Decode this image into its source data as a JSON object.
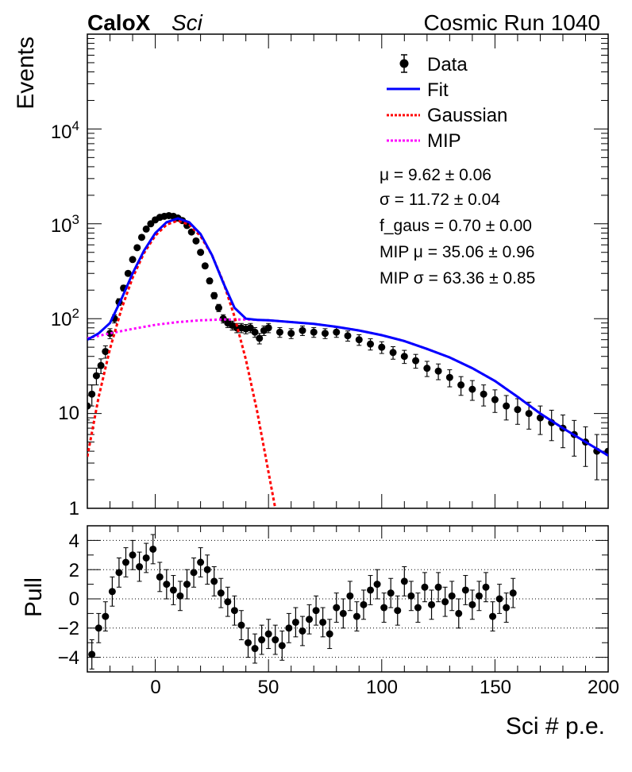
{
  "header": {
    "experiment": "CaloX",
    "detector": "Sci",
    "run_label": "Cosmic Run 1040"
  },
  "legend": {
    "data": "Data",
    "fit": "Fit",
    "gaussian": "Gaussian",
    "mip": "MIP"
  },
  "fit_params": [
    "μ = 9.62 ± 0.06",
    "σ = 11.72 ± 0.04",
    "f_gaus = 0.70 ± 0.00",
    "MIP μ = 35.06 ± 0.96",
    "MIP σ = 63.36 ± 0.85"
  ],
  "colors": {
    "data": "#000000",
    "fit": "#0000ff",
    "gaussian": "#ff0000",
    "mip": "#ff00ff",
    "grid": "#000000"
  },
  "chart_data": [
    {
      "type": "scatter",
      "panel": "main",
      "ylabel": "Events",
      "xlabel": "Sci # p.e.",
      "xlim": [
        -30,
        200
      ],
      "ylim": [
        1,
        100000
      ],
      "log_y": true,
      "x_ticks": [
        "0",
        "50",
        "100",
        "150",
        "200"
      ],
      "y_ticks": [
        "1",
        "10",
        "10^2",
        "10^3",
        "10^4"
      ],
      "series": [
        {
          "name": "Data",
          "x": [
            -30,
            -28,
            -26,
            -24,
            -22,
            -20,
            -18,
            -16,
            -14,
            -12,
            -10,
            -8,
            -6,
            -4,
            -2,
            0,
            2,
            4,
            6,
            8,
            10,
            12,
            14,
            16,
            18,
            20,
            22,
            24,
            26,
            28,
            30,
            32,
            34,
            36,
            38,
            40,
            42,
            44,
            46,
            48,
            50,
            55,
            60,
            65,
            70,
            75,
            80,
            85,
            90,
            95,
            100,
            105,
            110,
            115,
            120,
            125,
            130,
            135,
            140,
            145,
            150,
            155,
            160,
            165,
            170,
            175,
            180,
            185,
            190,
            195,
            200
          ],
          "y": [
            12,
            16,
            25,
            32,
            45,
            70,
            100,
            150,
            210,
            300,
            420,
            560,
            720,
            880,
            1000,
            1100,
            1170,
            1200,
            1220,
            1200,
            1150,
            1080,
            960,
            820,
            660,
            500,
            360,
            250,
            175,
            130,
            100,
            90,
            85,
            80,
            80,
            78,
            80,
            72,
            62,
            75,
            80,
            72,
            70,
            75,
            72,
            70,
            72,
            66,
            60,
            54,
            50,
            44,
            40,
            36,
            30,
            28,
            24,
            20,
            18,
            16,
            14,
            12,
            11,
            10,
            9,
            8,
            7,
            6,
            5,
            4,
            4
          ]
        },
        {
          "name": "Fit",
          "x": [
            -30,
            -25,
            -20,
            -15,
            -10,
            -5,
            0,
            5,
            10,
            15,
            20,
            25,
            30,
            35,
            40,
            45,
            50,
            60,
            70,
            80,
            90,
            100,
            110,
            120,
            130,
            140,
            150,
            160,
            170,
            180,
            190,
            200
          ],
          "y": [
            60,
            70,
            90,
            160,
            300,
            520,
            800,
            1040,
            1140,
            1040,
            780,
            470,
            240,
            130,
            100,
            97,
            96,
            92,
            88,
            82,
            75,
            67,
            58,
            48,
            39,
            30,
            22,
            15,
            10,
            7,
            5,
            3.6
          ]
        },
        {
          "name": "Gaussian",
          "x": [
            -30,
            -25,
            -20,
            -15,
            -10,
            -5,
            0,
            5,
            10,
            15,
            20,
            25,
            30,
            35,
            40,
            45,
            50,
            53
          ],
          "y": [
            3.5,
            15,
            48,
            125,
            270,
            490,
            750,
            980,
            1080,
            980,
            740,
            470,
            245,
            105,
            37,
            10.5,
            2.4,
            1
          ]
        },
        {
          "name": "MIP",
          "x": [
            -30,
            -20,
            -10,
            0,
            10,
            20,
            30,
            40,
            50,
            60,
            70,
            80,
            90,
            100,
            110,
            120,
            130,
            140,
            150,
            160,
            170,
            180,
            190,
            200
          ],
          "y": [
            62,
            70,
            78,
            86,
            92,
            96,
            98,
            98,
            96,
            92,
            88,
            82,
            75,
            67,
            58,
            48,
            39,
            30,
            22,
            15,
            10,
            7,
            5,
            3.6
          ]
        }
      ]
    },
    {
      "type": "scatter",
      "panel": "pull",
      "ylabel": "Pull",
      "xlim": [
        -30,
        200
      ],
      "ylim": [
        -5,
        5
      ],
      "grid": "dotted at y = -4, -2, 0, 2, 4",
      "y_ticks": [
        "4",
        "2",
        "0",
        "−2",
        "−4"
      ],
      "series": [
        {
          "name": "Data",
          "x": [
            -28,
            -25,
            -22,
            -19,
            -16,
            -13,
            -10,
            -7,
            -4,
            -1,
            2,
            5,
            8,
            11,
            14,
            17,
            20,
            23,
            26,
            29,
            32,
            35,
            38,
            41,
            44,
            47,
            50,
            53,
            56,
            59,
            62,
            65,
            68,
            71,
            74,
            77,
            80,
            83,
            86,
            89,
            92,
            95,
            98,
            101,
            104,
            107,
            110,
            113,
            116,
            119,
            122,
            125,
            128,
            131,
            134,
            137,
            140,
            143,
            146,
            149,
            152,
            155,
            158
          ],
          "y": [
            -3.8,
            -2.0,
            -1.2,
            0.5,
            1.8,
            2.5,
            3.0,
            2.2,
            2.8,
            3.4,
            1.5,
            1.0,
            0.6,
            0.2,
            1.0,
            1.8,
            2.5,
            2.0,
            1.2,
            0.4,
            -0.2,
            -0.8,
            -1.8,
            -3.0,
            -3.4,
            -2.8,
            -2.4,
            -2.8,
            -3.2,
            -2.0,
            -1.6,
            -2.2,
            -1.4,
            -0.8,
            -1.6,
            -2.4,
            -0.6,
            -1.0,
            0.2,
            -1.2,
            -0.4,
            0.6,
            1.0,
            -0.6,
            0.4,
            -0.8,
            1.2,
            0.2,
            -0.6,
            0.8,
            -0.4,
            0.8,
            -0.2,
            0.2,
            -1.0,
            0.6,
            -0.4,
            0.2,
            0.8,
            -1.2,
            0.0,
            -0.6,
            0.4
          ]
        }
      ]
    }
  ]
}
